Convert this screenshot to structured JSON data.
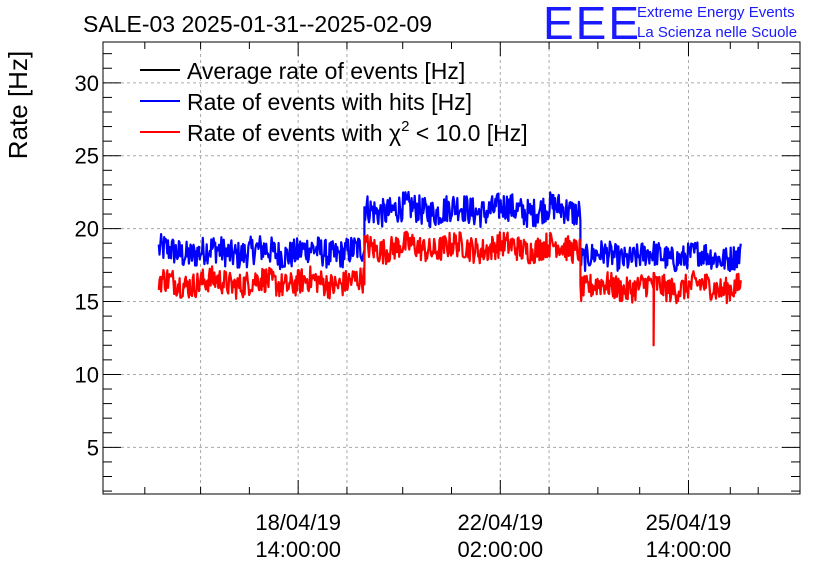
{
  "chart_data": {
    "type": "line",
    "title": "SALE-03 2025-01-31--2025-02-09",
    "ylabel": "Rate [Hz]",
    "xlabel": "",
    "ylim": [
      1.8,
      32.8
    ],
    "yticks": [
      5,
      10,
      15,
      20,
      25,
      30
    ],
    "xlim": [
      0,
      100
    ],
    "xticks": [
      {
        "x": 28,
        "line1": "18/04/19",
        "line2": "14:00:00"
      },
      {
        "x": 57,
        "line1": "22/04/19",
        "line2": "02:00:00"
      },
      {
        "x": 84,
        "line1": "25/04/19",
        "line2": "14:00:00"
      }
    ],
    "grid": true,
    "legend_position": "top-left",
    "series": [
      {
        "name": "Average rate of events [Hz]",
        "color": "#000000",
        "segments": []
      },
      {
        "name": "Rate of events with hits [Hz]",
        "color": "#0000ff",
        "segments": [
          {
            "x": [
              8,
              37.5
            ],
            "level": 18.4,
            "spread": 1.0
          },
          {
            "x": [
              37.5,
              68.5
            ],
            "level": 21.3,
            "spread": 1.0
          },
          {
            "x": [
              68.5,
              91.5
            ],
            "level": 18.1,
            "spread": 0.9
          }
        ]
      },
      {
        "name_prefix": "Rate of events with ",
        "name_symbol": "χ",
        "name_sup": "2",
        "name_suffix": " < 10.0 [Hz]",
        "color": "#ff0000",
        "segments": [
          {
            "x": [
              8,
              37.5
            ],
            "level": 16.3,
            "spread": 0.9
          },
          {
            "x": [
              37.5,
              68.5
            ],
            "level": 18.7,
            "spread": 0.9
          },
          {
            "x": [
              68.5,
              91.5
            ],
            "level": 16.0,
            "spread": 0.9
          }
        ],
        "outlier": {
          "x": 79,
          "value": 12.0
        }
      }
    ]
  },
  "logo": {
    "letters": "EEE",
    "line1": "Extreme Energy Events",
    "line2": "La Scienza nelle Scuole",
    "color": "#1a1aff"
  }
}
